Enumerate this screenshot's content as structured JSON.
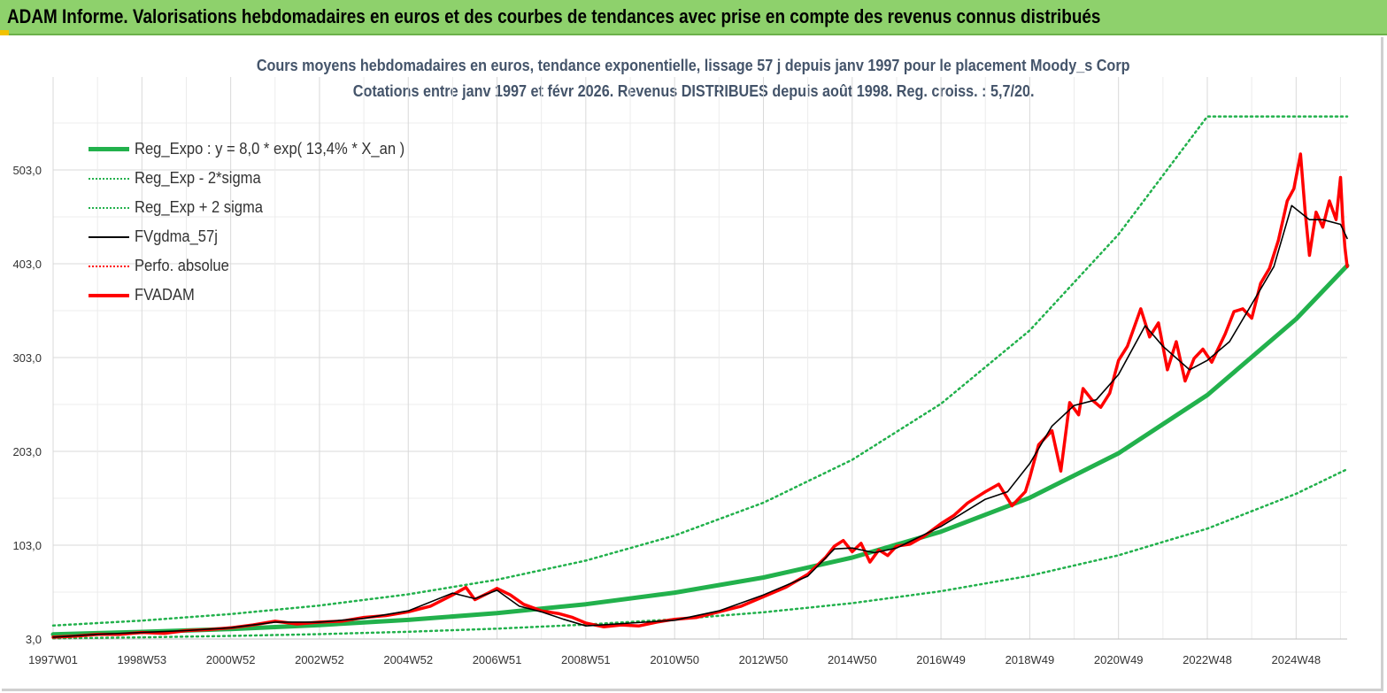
{
  "header": {
    "title": "ADAM Informe. Valorisations hebdomadaires en euros et des courbes de tendances avec prise en compte des revenus connus distribués"
  },
  "chart_data": {
    "type": "line",
    "title": "Cours moyens hebdomadaires en euros, tendance exponentielle, lissage 57 j depuis janv 1997 pour le placement Moody_s Corp",
    "subtitle": "Cotations entre janv 1997 et févr 2026. Revenus DISTRIBUES depuis août 1998. Reg. croiss. : 5,7/20.",
    "xlabel": "",
    "ylabel": "",
    "ylim": [
      3,
      560
    ],
    "y_ticks": [
      "3,0",
      "103,0",
      "203,0",
      "303,0",
      "403,0",
      "503,0"
    ],
    "y_tick_values": [
      3,
      103,
      203,
      303,
      403,
      503
    ],
    "x_ticks": [
      "1997W01",
      "1998W53",
      "2000W52",
      "2002W52",
      "2004W52",
      "2006W51",
      "2008W51",
      "2010W50",
      "2012W50",
      "2014W50",
      "2016W49",
      "2018W49",
      "2020W49",
      "2022W48",
      "2024W48"
    ],
    "x_tick_years": [
      1997.0,
      1999.0,
      2001.0,
      2003.0,
      2005.0,
      2007.0,
      2009.0,
      2011.0,
      2013.0,
      2015.0,
      2017.0,
      2019.0,
      2021.0,
      2023.0,
      2025.0
    ],
    "xlim": [
      1997.0,
      2026.15
    ],
    "grid": "horizontal and vertical",
    "legend_position": "top-left",
    "series": [
      {
        "name": "Reg_Expo : y = 8,0 * exp( 13,4% *  X_an )",
        "color": "#22b14c",
        "style": "solid-thick",
        "x": [
          1997.0,
          1999.0,
          2001.0,
          2003.0,
          2005.0,
          2007.0,
          2009.0,
          2011.0,
          2013.0,
          2015.0,
          2017.0,
          2019.0,
          2021.0,
          2023.0,
          2025.0,
          2026.15
        ],
        "values": [
          8.0,
          10.5,
          13.7,
          17.9,
          23.4,
          30.6,
          40.1,
          52.4,
          68.6,
          89.8,
          117.4,
          153.6,
          201.0,
          263.0,
          344.0,
          401.0
        ]
      },
      {
        "name": "Reg_Exp - 2*sigma",
        "color": "#22b14c",
        "style": "dotted",
        "x": [
          1997.0,
          1999.0,
          2001.0,
          2003.0,
          2005.0,
          2007.0,
          2009.0,
          2011.0,
          2013.0,
          2015.0,
          2017.0,
          2019.0,
          2021.0,
          2023.0,
          2025.0,
          2026.15
        ],
        "values": [
          3.7,
          4.8,
          6.3,
          8.2,
          10.7,
          14.0,
          18.4,
          24.0,
          31.5,
          41.2,
          53.9,
          70.5,
          92.2,
          120.6,
          157.8,
          184.0
        ]
      },
      {
        "name": "Reg_Exp + 2 sigma",
        "color": "#22b14c",
        "style": "dotted",
        "x": [
          1997.0,
          1999.0,
          2001.0,
          2003.0,
          2005.0,
          2007.0,
          2009.0,
          2011.0,
          2013.0,
          2015.0,
          2017.0,
          2019.0,
          2021.0,
          2023.0,
          2024.5,
          2025.0,
          2026.15
        ],
        "values": [
          17.3,
          22.6,
          29.6,
          38.7,
          50.6,
          66.2,
          86.6,
          113.3,
          148.3,
          194.0,
          253.8,
          332.0,
          434.3,
          560.0,
          560.0,
          560.0,
          560.0
        ]
      },
      {
        "name": "FVgdma_57j",
        "color": "#000000",
        "style": "solid",
        "x": [
          1997.0,
          1998.0,
          1999.0,
          2000.0,
          2001.0,
          2002.0,
          2003.0,
          2004.0,
          2005.0,
          2006.0,
          2006.5,
          2007.0,
          2007.5,
          2008.0,
          2008.5,
          2009.0,
          2010.0,
          2011.0,
          2012.0,
          2013.0,
          2014.0,
          2014.6,
          2015.0,
          2015.5,
          2016.0,
          2017.0,
          2018.0,
          2018.5,
          2019.0,
          2019.5,
          2020.0,
          2020.5,
          2021.0,
          2021.6,
          2022.0,
          2022.6,
          2023.0,
          2023.5,
          2024.0,
          2024.5,
          2024.9,
          2025.3,
          2025.6,
          2026.0,
          2026.15
        ],
        "values": [
          5,
          8,
          10,
          12,
          15,
          21,
          21,
          25,
          33,
          52,
          46,
          55,
          38,
          32,
          24,
          17,
          20,
          23,
          33,
          50,
          70,
          99,
          100,
          95,
          100,
          123,
          152,
          160,
          190,
          230,
          252,
          258,
          285,
          337,
          315,
          290,
          300,
          320,
          360,
          400,
          465,
          450,
          450,
          445,
          430
        ]
      },
      {
        "name": "Perfo. absolue",
        "color": "#ff0000",
        "style": "dotted",
        "x": [],
        "values": []
      },
      {
        "name": "FVADAM",
        "color": "#ff0000",
        "style": "solid-thick",
        "x": [
          1997.0,
          1997.5,
          1998.0,
          1998.5,
          1999.0,
          1999.5,
          2000.0,
          2000.5,
          2001.0,
          2001.5,
          2002.0,
          2002.5,
          2003.0,
          2003.5,
          2004.0,
          2004.5,
          2005.0,
          2005.5,
          2006.0,
          2006.3,
          2006.5,
          2006.8,
          2007.0,
          2007.3,
          2007.6,
          2008.0,
          2008.4,
          2008.7,
          2009.0,
          2009.4,
          2009.8,
          2010.2,
          2010.6,
          2011.0,
          2011.5,
          2012.0,
          2012.5,
          2013.0,
          2013.5,
          2014.0,
          2014.4,
          2014.6,
          2014.8,
          2015.0,
          2015.2,
          2015.4,
          2015.6,
          2015.8,
          2016.0,
          2016.3,
          2016.6,
          2017.0,
          2017.3,
          2017.6,
          2018.0,
          2018.3,
          2018.6,
          2018.9,
          2019.0,
          2019.2,
          2019.5,
          2019.7,
          2019.9,
          2020.1,
          2020.2,
          2020.4,
          2020.6,
          2020.8,
          2021.0,
          2021.2,
          2021.5,
          2021.7,
          2021.9,
          2022.1,
          2022.3,
          2022.5,
          2022.7,
          2022.9,
          2023.1,
          2023.4,
          2023.6,
          2023.8,
          2024.0,
          2024.2,
          2024.4,
          2024.6,
          2024.8,
          2024.95,
          2025.1,
          2025.2,
          2025.3,
          2025.45,
          2025.6,
          2025.75,
          2025.9,
          2026.0,
          2026.05,
          2026.1,
          2026.15
        ],
        "values": [
          5,
          6,
          8,
          8,
          10,
          9,
          12,
          13,
          15,
          18,
          22,
          19,
          21,
          22,
          26,
          28,
          32,
          38,
          50,
          58,
          45,
          52,
          57,
          50,
          40,
          33,
          30,
          26,
          20,
          16,
          18,
          17,
          21,
          24,
          26,
          32,
          38,
          48,
          58,
          72,
          90,
          102,
          108,
          96,
          105,
          85,
          98,
          92,
          102,
          104,
          112,
          126,
          135,
          148,
          160,
          168,
          145,
          160,
          175,
          210,
          225,
          182,
          255,
          242,
          270,
          258,
          250,
          265,
          300,
          315,
          355,
          325,
          340,
          290,
          320,
          278,
          302,
          312,
          298,
          328,
          352,
          355,
          345,
          382,
          398,
          428,
          470,
          483,
          520,
          460,
          412,
          458,
          442,
          470,
          450,
          495,
          450,
          420,
          400
        ]
      }
    ]
  }
}
